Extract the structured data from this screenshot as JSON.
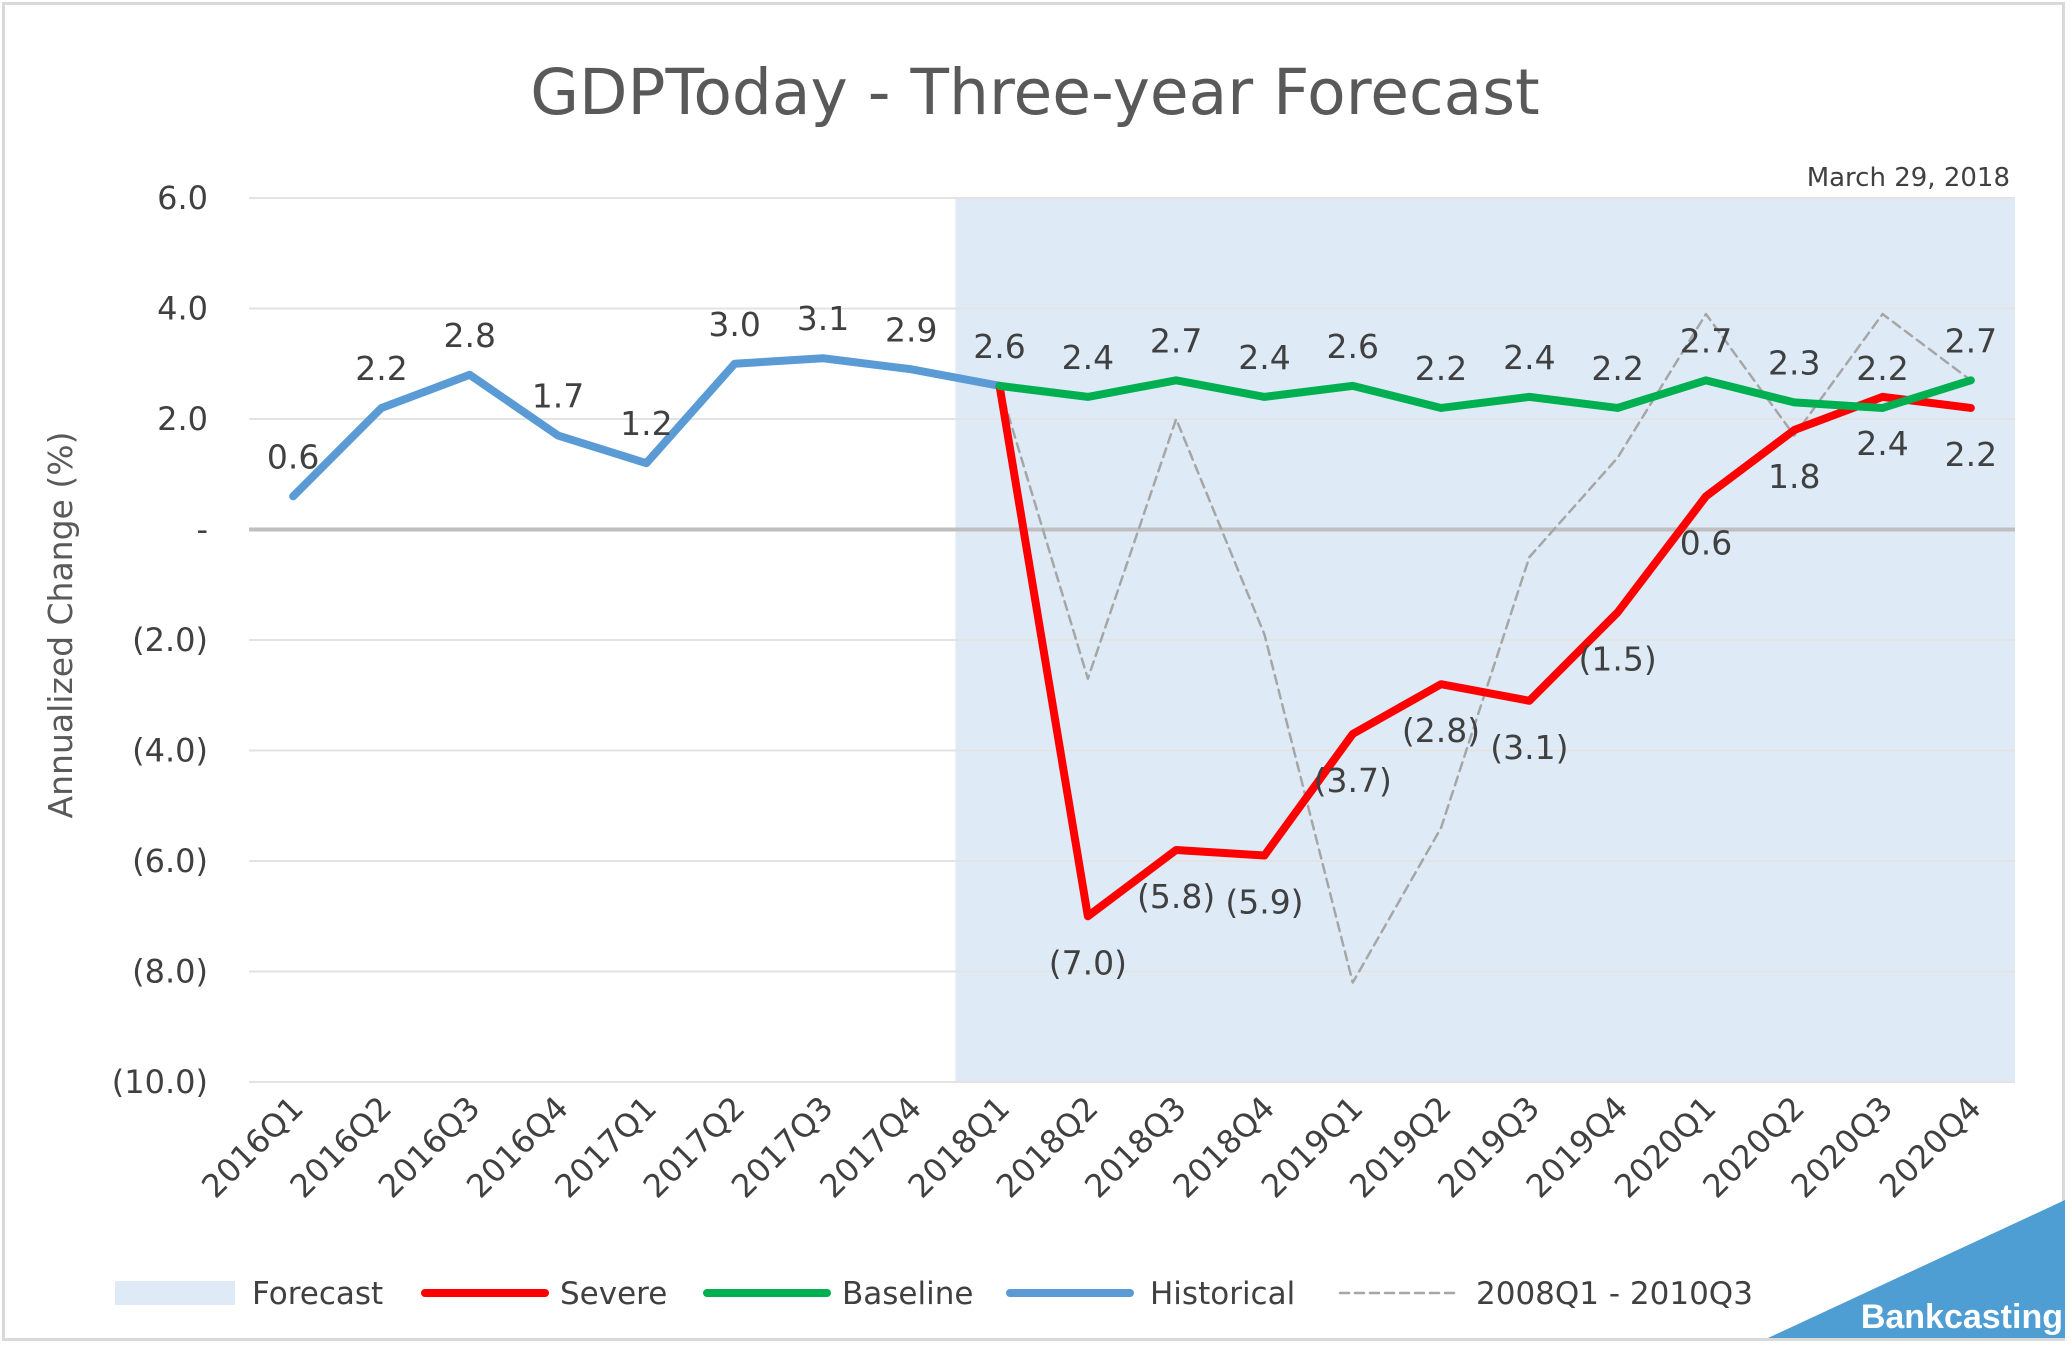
{
  "chart_data": {
    "type": "line",
    "title": "GDPToday - Three-year Forecast",
    "date_note": "March 29, 2018",
    "ylabel": "Annualized Change (%)",
    "ylim": [
      -10,
      6
    ],
    "y_ticks": [
      6,
      4,
      2,
      0,
      -2,
      -4,
      -6,
      -8,
      -10
    ],
    "y_tick_labels": [
      "6.0",
      "4.0",
      "2.0",
      "-",
      "(2.0)",
      "(4.0)",
      "(6.0)",
      "(8.0)",
      "(10.0)"
    ],
    "categories": [
      "2016Q1",
      "2016Q2",
      "2016Q3",
      "2016Q4",
      "2017Q1",
      "2017Q2",
      "2017Q3",
      "2017Q4",
      "2018Q1",
      "2018Q2",
      "2018Q3",
      "2018Q4",
      "2019Q1",
      "2019Q2",
      "2019Q3",
      "2019Q4",
      "2020Q1",
      "2020Q2",
      "2020Q3",
      "2020Q4"
    ],
    "forecast_region": {
      "name": "Forecast",
      "start": "2018Q1",
      "end": "2020Q4",
      "color": "#deebf7"
    },
    "series": [
      {
        "name": "Historical",
        "color": "#5b9bd5",
        "style": "solid",
        "x": [
          "2016Q1",
          "2016Q2",
          "2016Q3",
          "2016Q4",
          "2017Q1",
          "2017Q2",
          "2017Q3",
          "2017Q4",
          "2018Q1"
        ],
        "values": [
          0.6,
          2.2,
          2.8,
          1.7,
          1.2,
          3.0,
          3.1,
          2.9,
          2.6
        ],
        "labels": [
          "0.6",
          "2.2",
          "2.8",
          "1.7",
          "1.2",
          "3.0",
          "3.1",
          "2.9",
          "2.6"
        ]
      },
      {
        "name": "Baseline",
        "color": "#00b050",
        "style": "solid",
        "x": [
          "2018Q1",
          "2018Q2",
          "2018Q3",
          "2018Q4",
          "2019Q1",
          "2019Q2",
          "2019Q3",
          "2019Q4",
          "2020Q1",
          "2020Q2",
          "2020Q3",
          "2020Q4"
        ],
        "values": [
          2.6,
          2.4,
          2.7,
          2.4,
          2.6,
          2.2,
          2.4,
          2.2,
          2.7,
          2.3,
          2.2,
          2.7
        ],
        "labels": [
          "",
          "2.4",
          "2.7",
          "2.4",
          "2.6",
          "2.2",
          "2.4",
          "2.2",
          "2.7",
          "2.3",
          "2.2",
          "2.7"
        ]
      },
      {
        "name": "Severe",
        "color": "#ff0000",
        "style": "solid",
        "x": [
          "2018Q1",
          "2018Q2",
          "2018Q3",
          "2018Q4",
          "2019Q1",
          "2019Q2",
          "2019Q3",
          "2019Q4",
          "2020Q1",
          "2020Q2",
          "2020Q3",
          "2020Q4"
        ],
        "values": [
          2.6,
          -7.0,
          -5.8,
          -5.9,
          -3.7,
          -2.8,
          -3.1,
          -1.5,
          0.6,
          1.8,
          2.4,
          2.2
        ],
        "labels": [
          "",
          "(7.0)",
          "(5.8)",
          "(5.9)",
          "(3.7)",
          "(2.8)",
          "(3.1)",
          "(1.5)",
          "0.6",
          "1.8",
          "2.4",
          "2.2"
        ]
      },
      {
        "name": "2008Q1 - 2010Q3",
        "color": "#a6a6a6",
        "style": "dashed",
        "x": [
          "2018Q1",
          "2018Q2",
          "2018Q3",
          "2018Q4",
          "2019Q1",
          "2019Q2",
          "2019Q3",
          "2019Q4",
          "2020Q1",
          "2020Q2",
          "2020Q3",
          "2020Q4"
        ],
        "values": [
          2.6,
          -2.7,
          2.0,
          -1.9,
          -8.2,
          -5.4,
          -0.5,
          1.3,
          3.9,
          1.7,
          3.9,
          2.7
        ],
        "labels": []
      }
    ],
    "legend": {
      "position": "bottom",
      "entries": [
        "Forecast",
        "Severe",
        "Baseline",
        "Historical",
        "2008Q1 - 2010Q3"
      ]
    },
    "grid": true
  },
  "brand": {
    "name": "Bankcasting",
    "color": "#4e9dd3"
  }
}
